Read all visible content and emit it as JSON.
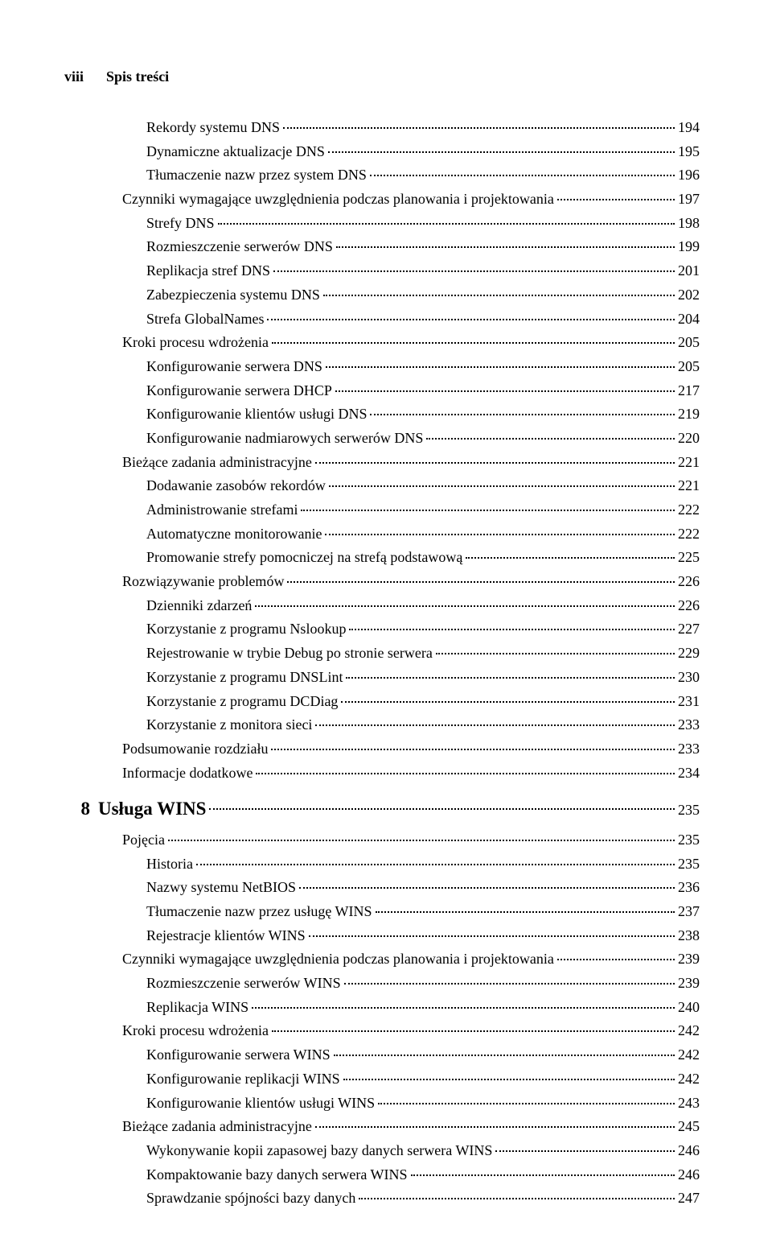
{
  "header": {
    "page_number": "viii",
    "title": "Spis treści"
  },
  "entries": [
    {
      "indent": 2,
      "label": "Rekordy systemu DNS",
      "page": "194"
    },
    {
      "indent": 2,
      "label": "Dynamiczne aktualizacje DNS",
      "page": "195"
    },
    {
      "indent": 2,
      "label": "Tłumaczenie nazw przez system DNS",
      "page": "196"
    },
    {
      "indent": 1,
      "label": "Czynniki wymagające uwzględnienia podczas planowania i projektowania",
      "page": "197"
    },
    {
      "indent": 2,
      "label": "Strefy DNS",
      "page": "198"
    },
    {
      "indent": 2,
      "label": "Rozmieszczenie serwerów DNS",
      "page": "199"
    },
    {
      "indent": 2,
      "label": "Replikacja stref DNS",
      "page": "201"
    },
    {
      "indent": 2,
      "label": "Zabezpieczenia systemu DNS",
      "page": "202"
    },
    {
      "indent": 2,
      "label": "Strefa GlobalNames",
      "page": "204"
    },
    {
      "indent": 1,
      "label": "Kroki procesu wdrożenia",
      "page": "205"
    },
    {
      "indent": 2,
      "label": "Konfigurowanie serwera DNS",
      "page": "205"
    },
    {
      "indent": 2,
      "label": "Konfigurowanie serwera DHCP",
      "page": "217"
    },
    {
      "indent": 2,
      "label": "Konfigurowanie klientów usługi DNS",
      "page": "219"
    },
    {
      "indent": 2,
      "label": "Konfigurowanie nadmiarowych serwerów DNS",
      "page": "220"
    },
    {
      "indent": 1,
      "label": "Bieżące zadania administracyjne",
      "page": "221"
    },
    {
      "indent": 2,
      "label": "Dodawanie zasobów rekordów",
      "page": "221"
    },
    {
      "indent": 2,
      "label": "Administrowanie strefami",
      "page": "222"
    },
    {
      "indent": 2,
      "label": "Automatyczne monitorowanie",
      "page": "222"
    },
    {
      "indent": 2,
      "label": "Promowanie strefy pomocniczej na strefą podstawową",
      "page": "225"
    },
    {
      "indent": 1,
      "label": "Rozwiązywanie problemów",
      "page": "226"
    },
    {
      "indent": 2,
      "label": "Dzienniki zdarzeń",
      "page": "226"
    },
    {
      "indent": 2,
      "label": "Korzystanie z programu Nslookup",
      "page": "227"
    },
    {
      "indent": 2,
      "label": "Rejestrowanie w trybie Debug po stronie serwera",
      "page": "229"
    },
    {
      "indent": 2,
      "label": "Korzystanie z programu DNSLint",
      "page": "230"
    },
    {
      "indent": 2,
      "label": "Korzystanie z programu DCDiag",
      "page": "231"
    },
    {
      "indent": 2,
      "label": "Korzystanie z monitora sieci",
      "page": "233"
    },
    {
      "indent": 1,
      "label": "Podsumowanie rozdziału",
      "page": "233"
    },
    {
      "indent": 1,
      "label": "Informacje dodatkowe",
      "page": "234"
    }
  ],
  "chapter": {
    "number": "8",
    "title": "Usługa WINS",
    "page": "235"
  },
  "entries2": [
    {
      "indent": 1,
      "label": "Pojęcia",
      "page": "235"
    },
    {
      "indent": 2,
      "label": "Historia",
      "page": "235"
    },
    {
      "indent": 2,
      "label": "Nazwy systemu NetBIOS",
      "page": "236"
    },
    {
      "indent": 2,
      "label": "Tłumaczenie nazw przez usługę WINS",
      "page": "237"
    },
    {
      "indent": 2,
      "label": "Rejestracje klientów WINS",
      "page": "238"
    },
    {
      "indent": 1,
      "label": "Czynniki wymagające uwzględnienia podczas planowania i projektowania",
      "page": "239"
    },
    {
      "indent": 2,
      "label": "Rozmieszczenie serwerów WINS",
      "page": "239"
    },
    {
      "indent": 2,
      "label": "Replikacja WINS",
      "page": "240"
    },
    {
      "indent": 1,
      "label": "Kroki procesu wdrożenia",
      "page": "242"
    },
    {
      "indent": 2,
      "label": "Konfigurowanie serwera WINS",
      "page": "242"
    },
    {
      "indent": 2,
      "label": "Konfigurowanie replikacji WINS",
      "page": "242"
    },
    {
      "indent": 2,
      "label": "Konfigurowanie klientów usługi WINS",
      "page": "243"
    },
    {
      "indent": 1,
      "label": "Bieżące zadania administracyjne",
      "page": "245"
    },
    {
      "indent": 2,
      "label": "Wykonywanie kopii zapasowej bazy danych serwera WINS",
      "page": "246"
    },
    {
      "indent": 2,
      "label": "Kompaktowanie bazy danych serwera WINS",
      "page": "246"
    },
    {
      "indent": 2,
      "label": "Sprawdzanie spójności bazy danych",
      "page": "247"
    }
  ]
}
